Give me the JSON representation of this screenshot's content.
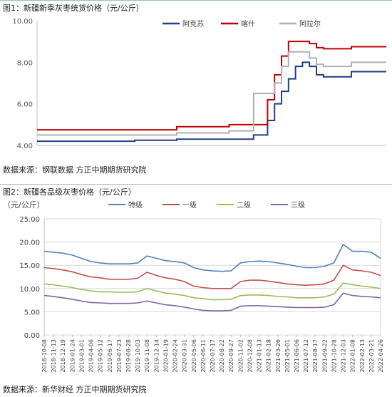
{
  "figures": [
    {
      "title": "图1：新疆新季灰枣统货价格（元/公斤）",
      "source": "数据来源：钢联数据 方正中期期货研究院"
    },
    {
      "title": "图2：新疆各品级灰枣价格（元/公斤）",
      "source": "数据来源：新华财经 方正中期期货研究院"
    }
  ],
  "chart_data": [
    {
      "type": "line",
      "ylim": [
        4.0,
        10.0
      ],
      "yticks": [
        "4.00",
        "6.00",
        "8.00",
        "10.00"
      ],
      "step": true,
      "legend_position": "top-center",
      "x": [
        0,
        28,
        40,
        55,
        62,
        66,
        68,
        70,
        72,
        74,
        76,
        78,
        80,
        82,
        86,
        90,
        100
      ],
      "series": [
        {
          "name": "阿克苏",
          "color": "#1f3f8c",
          "values": [
            4.2,
            4.25,
            4.3,
            4.3,
            4.5,
            5.2,
            6.0,
            6.6,
            7.2,
            7.8,
            8.0,
            7.8,
            7.4,
            7.3,
            7.3,
            7.55,
            7.55
          ]
        },
        {
          "name": "喀什",
          "color": "#c00000",
          "values": [
            4.75,
            4.75,
            4.9,
            5.0,
            5.0,
            6.2,
            7.4,
            8.3,
            9.0,
            9.0,
            9.0,
            8.9,
            8.7,
            8.65,
            8.65,
            8.75,
            8.75
          ]
        },
        {
          "name": "阿拉尔",
          "color": "#b0b0b0",
          "values": [
            4.5,
            4.5,
            4.6,
            4.7,
            6.5,
            6.5,
            7.0,
            7.8,
            8.5,
            8.5,
            8.5,
            8.2,
            7.9,
            7.8,
            7.8,
            8.0,
            8.0
          ]
        }
      ]
    },
    {
      "type": "line",
      "ylabel": "（元/公斤）",
      "ylim": [
        0,
        25
      ],
      "yticks": [
        "0.00",
        "5.00",
        "10.00",
        "15.00",
        "20.00",
        "25.00"
      ],
      "grid": true,
      "legend_position": "top-center",
      "categories": [
        "2018-10-08",
        "2018-11-13",
        "2018-12-19",
        "2019-01-24",
        "2019-03-01",
        "2019-04-06",
        "2019-05-12",
        "2019-06-17",
        "2019-07-23",
        "2019-08-28",
        "2019-10-03",
        "2019-11-08",
        "2019-12-14",
        "2020-01-19",
        "2020-02-24",
        "2020-03-31",
        "2020-05-06",
        "2020-06-11",
        "2020-07-17",
        "2020-08-22",
        "2020-09-27",
        "2020-11-02",
        "2020-12-08",
        "2021-01-13",
        "2021-02-18",
        "2021-03-26",
        "2021-05-01",
        "2021-06-06",
        "2021-07-12",
        "2021-08-17",
        "2021-09-22",
        "2021-10-28",
        "2021-12-03",
        "2022-01-08",
        "2022-02-13",
        "2022-03-21",
        "2022-04-26"
      ],
      "series": [
        {
          "name": "特级",
          "color": "#4f81bd",
          "values": [
            18.0,
            17.8,
            17.6,
            17.2,
            16.5,
            15.8,
            15.5,
            15.3,
            15.3,
            15.3,
            15.5,
            17.0,
            16.5,
            16.0,
            15.8,
            15.5,
            14.5,
            14.0,
            13.8,
            13.7,
            13.8,
            15.5,
            15.8,
            15.9,
            15.8,
            15.5,
            15.2,
            14.8,
            14.5,
            14.5,
            14.8,
            15.5,
            19.5,
            18.0,
            18.0,
            17.8,
            16.5
          ]
        },
        {
          "name": "一级",
          "color": "#c0504d",
          "values": [
            14.5,
            14.3,
            14.0,
            13.6,
            13.0,
            12.5,
            12.3,
            12.0,
            12.0,
            12.0,
            12.2,
            13.5,
            12.8,
            12.3,
            12.0,
            11.5,
            10.5,
            10.2,
            10.0,
            10.0,
            10.0,
            11.5,
            11.8,
            11.8,
            11.6,
            11.3,
            11.0,
            10.8,
            10.7,
            10.8,
            11.0,
            11.8,
            15.0,
            14.0,
            13.8,
            13.5,
            12.8
          ]
        },
        {
          "name": "二级",
          "color": "#9bbb59",
          "values": [
            11.0,
            10.8,
            10.5,
            10.2,
            9.8,
            9.5,
            9.3,
            9.3,
            9.2,
            9.2,
            9.3,
            10.0,
            9.5,
            9.0,
            8.8,
            8.5,
            8.0,
            7.8,
            7.6,
            7.6,
            7.7,
            8.5,
            8.6,
            8.6,
            8.5,
            8.3,
            8.2,
            8.0,
            8.0,
            8.0,
            8.2,
            8.8,
            11.2,
            10.8,
            10.5,
            10.3,
            10.0
          ]
        },
        {
          "name": "三级",
          "color": "#8064a2",
          "values": [
            8.5,
            8.3,
            8.0,
            7.7,
            7.3,
            7.0,
            6.9,
            6.8,
            6.8,
            6.8,
            6.9,
            7.3,
            6.9,
            6.5,
            6.3,
            6.0,
            5.6,
            5.3,
            5.2,
            5.2,
            5.3,
            6.2,
            6.3,
            6.3,
            6.2,
            6.1,
            6.0,
            5.9,
            5.9,
            5.9,
            6.0,
            6.5,
            9.0,
            8.5,
            8.3,
            8.2,
            8.0
          ]
        }
      ]
    }
  ]
}
